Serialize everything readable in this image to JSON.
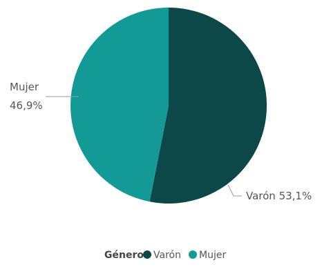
{
  "chart_data": {
    "type": "pie",
    "slices": [
      {
        "name": "Varón",
        "value": 53.1,
        "label": "Varón 53,1%",
        "color": "#0d4848"
      },
      {
        "name": "Mujer",
        "value": 46.9,
        "label_line1": "Mujer",
        "label_line2": "46,9%",
        "color": "#149a96"
      }
    ],
    "legend": {
      "title": "Género",
      "placement": "bottom",
      "items": [
        "Varón",
        "Mujer"
      ]
    }
  }
}
